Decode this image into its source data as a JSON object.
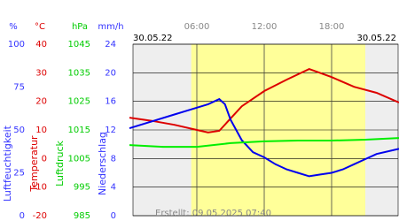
{
  "chart_data": {
    "type": "line",
    "xlim": [
      0,
      24
    ],
    "xticks": [
      {
        "value": 6,
        "label": "06:00"
      },
      {
        "value": 12,
        "label": "12:00"
      },
      {
        "value": 18,
        "label": "18:00"
      }
    ],
    "date_start": "30.05.22",
    "date_end": "30.05.22",
    "daylight": [
      5.5,
      21
    ],
    "footer": "Erstellt: 09.05.2025 07:40",
    "grid": true,
    "y_axes": [
      {
        "unit": "%",
        "title": "Luftfeuchtigkeit",
        "color": "#3333ff",
        "ylim": [
          0,
          100
        ],
        "yticks": [
          0,
          25,
          50,
          75,
          100
        ]
      },
      {
        "unit": "°C",
        "title": "Temperatur",
        "color": "#dd0000",
        "ylim": [
          -20,
          40
        ],
        "yticks": [
          -20,
          -10,
          0,
          10,
          20,
          30,
          40
        ]
      },
      {
        "unit": "hPa",
        "title": "Luftdruck",
        "color": "#00cc00",
        "ylim": [
          985,
          1045
        ],
        "yticks": [
          985,
          995,
          1005,
          1015,
          1025,
          1035,
          1045
        ]
      },
      {
        "unit": "mm/h",
        "title": "Niederschlag",
        "color": "#3333ff",
        "ylim": [
          0,
          24
        ],
        "yticks": [
          0,
          4,
          8,
          12,
          16,
          20,
          24
        ]
      }
    ],
    "series": [
      {
        "axis": 1,
        "color": "#dd0000",
        "x": [
          0,
          2,
          4,
          6,
          7,
          8,
          9,
          10,
          12,
          14,
          16,
          18,
          20,
          22,
          24
        ],
        "values": [
          14.3,
          13.2,
          11.8,
          10,
          9.1,
          9.7,
          14,
          18.3,
          23.6,
          27.6,
          31.3,
          28.5,
          25.1,
          23,
          19.6
        ]
      },
      {
        "axis": 0,
        "color": "#0000ee",
        "x": [
          0,
          2,
          4,
          6,
          7,
          8,
          8.5,
          9,
          10,
          11,
          12,
          13,
          14,
          15,
          16,
          17,
          18,
          19,
          20,
          21,
          22,
          24
        ],
        "values": [
          51,
          55,
          59,
          63,
          65,
          68,
          65,
          56,
          44,
          37,
          34,
          30,
          27,
          25,
          23,
          24,
          25,
          27,
          30,
          33,
          36,
          39
        ]
      },
      {
        "axis": 2,
        "color": "#00ee00",
        "x": [
          0,
          3,
          6,
          9,
          12,
          15,
          18,
          21,
          24
        ],
        "values": [
          1009.7,
          1009.1,
          1009.1,
          1010.4,
          1011,
          1011.3,
          1011.3,
          1011.6,
          1012.2
        ]
      }
    ]
  }
}
